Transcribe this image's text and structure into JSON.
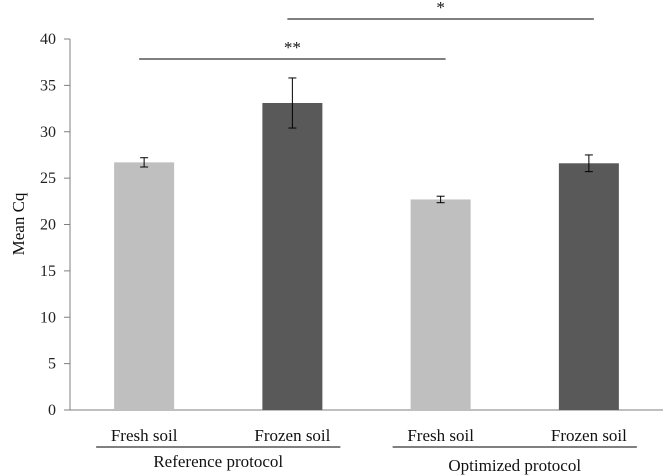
{
  "chart_data": {
    "type": "bar",
    "ylabel": "Mean Cq",
    "ylim": [
      0,
      40
    ],
    "yticks": [
      0,
      5,
      10,
      15,
      20,
      25,
      30,
      35,
      40
    ],
    "grid": false,
    "categories": [
      "Fresh soil",
      "Frozen soil",
      "Fresh soil",
      "Frozen soil"
    ],
    "groups": [
      {
        "label": "Reference protocol",
        "categories": [
          0,
          1
        ]
      },
      {
        "label": "Optimized protocol",
        "categories": [
          2,
          3
        ]
      }
    ],
    "values": [
      26.7,
      33.1,
      22.7,
      26.6
    ],
    "errors": [
      0.5,
      2.7,
      0.35,
      0.9
    ],
    "colors": {
      "fresh": "#bfbfbf",
      "frozen": "#595959"
    },
    "significance": [
      {
        "from": 0,
        "to": 2,
        "label": "**"
      },
      {
        "from": 1,
        "to": 3,
        "label": "*"
      }
    ]
  }
}
